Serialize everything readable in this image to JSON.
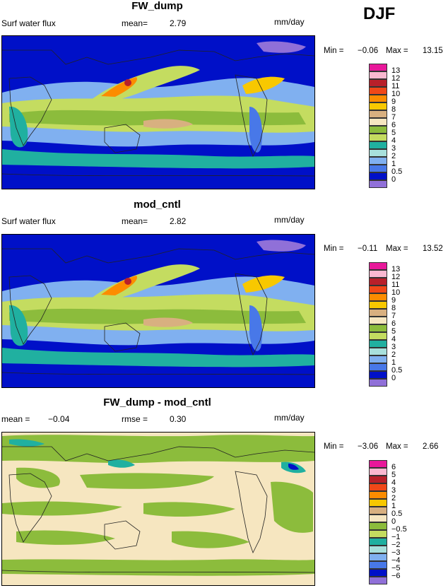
{
  "season": "DJF",
  "units": "mm/day",
  "chart_data": [
    {
      "type": "heatmap",
      "title": "FW_dump",
      "subtitle_left": "Surf water flux",
      "stat1_label": "mean=",
      "stat1_value": "2.79",
      "units": "mm/day",
      "min_label": "Min =",
      "min_value": "−0.06",
      "max_label": "Max =",
      "max_value": "13.15",
      "legend_labels": [
        "13",
        "12",
        "11",
        "10",
        "9",
        "8",
        "7",
        "6",
        "5",
        "4",
        "3",
        "2",
        "1",
        "0.5",
        "0"
      ],
      "legend_colors": [
        "#e8189a",
        "#f9b8d0",
        "#b8202a",
        "#f04818",
        "#fc8c00",
        "#f8c800",
        "#d8b080",
        "#f6e6c0",
        "#8cbc3c",
        "#c4dc60",
        "#20b0a0",
        "#a8e0dc",
        "#80b0f0",
        "#4878e8",
        "#0010c8",
        "#9070d8"
      ]
    },
    {
      "type": "heatmap",
      "title": "mod_cntl",
      "subtitle_left": "Surf water flux",
      "stat1_label": "mean=",
      "stat1_value": "2.82",
      "units": "mm/day",
      "min_label": "Min =",
      "min_value": "−0.11",
      "max_label": "Max =",
      "max_value": "13.52",
      "legend_labels": [
        "13",
        "12",
        "11",
        "10",
        "9",
        "8",
        "7",
        "6",
        "5",
        "4",
        "3",
        "2",
        "1",
        "0.5",
        "0"
      ],
      "legend_colors": [
        "#e8189a",
        "#f9b8d0",
        "#b8202a",
        "#f04818",
        "#fc8c00",
        "#f8c800",
        "#d8b080",
        "#f6e6c0",
        "#8cbc3c",
        "#c4dc60",
        "#20b0a0",
        "#a8e0dc",
        "#80b0f0",
        "#4878e8",
        "#0010c8",
        "#9070d8"
      ]
    },
    {
      "type": "heatmap",
      "title": "FW_dump - mod_cntl",
      "subtitle_left_label": "mean =",
      "subtitle_left_value": "−0.04",
      "stat1_label": "rmse =",
      "stat1_value": "0.30",
      "units": "mm/day",
      "min_label": "Min =",
      "min_value": "−3.06",
      "max_label": "Max =",
      "max_value": "2.66",
      "legend_labels": [
        "6",
        "5",
        "4",
        "3",
        "2",
        "1",
        "0.5",
        "0",
        "−0.5",
        "−1",
        "−2",
        "−3",
        "−4",
        "−5",
        "−6"
      ],
      "legend_colors": [
        "#e8189a",
        "#f9b8d0",
        "#b8202a",
        "#f04818",
        "#fc8c00",
        "#f8c800",
        "#d8b080",
        "#f6e6c0",
        "#8cbc3c",
        "#c4dc60",
        "#20b0a0",
        "#a8e0dc",
        "#80b0f0",
        "#4878e8",
        "#0010c8",
        "#9070d8"
      ]
    }
  ]
}
